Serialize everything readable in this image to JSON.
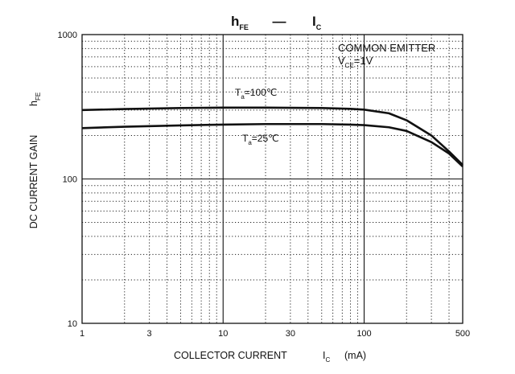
{
  "chart_data": {
    "type": "line",
    "title": {
      "main": "h",
      "main_sub": "FE",
      "dash": "—",
      "vs": "I",
      "vs_sub": "C"
    },
    "xlabel": {
      "text": "COLLECTOR CURRENT",
      "symbol": "I",
      "symbol_sub": "C",
      "unit": "(mA)"
    },
    "ylabel": {
      "text": "DC CURRENT GAIN",
      "symbol": "h",
      "symbol_sub": "FE"
    },
    "x_scale": "log",
    "y_scale": "log",
    "xlim": [
      1,
      500
    ],
    "ylim": [
      10,
      1000
    ],
    "x_ticks": [
      {
        "value": 1,
        "label": "1"
      },
      {
        "value": 3,
        "label": "3"
      },
      {
        "value": 10,
        "label": "10"
      },
      {
        "value": 30,
        "label": "30"
      },
      {
        "value": 100,
        "label": "100"
      },
      {
        "value": 500,
        "label": "500"
      }
    ],
    "y_ticks": [
      {
        "value": 10,
        "label": "10"
      },
      {
        "value": 100,
        "label": "100"
      },
      {
        "value": 1000,
        "label": "1000"
      }
    ],
    "grid": true,
    "annotation": {
      "line1": "COMMON EMITTER",
      "line2_sym": "V",
      "line2_sub": "CE",
      "line2_rest": "=1V"
    },
    "series": [
      {
        "name": "Ta=100℃",
        "label_sym": "T",
        "label_sub": "a",
        "label_rest": "=100℃",
        "x": [
          1,
          2,
          5,
          10,
          20,
          50,
          80,
          100,
          150,
          200,
          300,
          400,
          500
        ],
        "y": [
          300,
          305,
          310,
          312,
          312,
          310,
          306,
          302,
          285,
          255,
          200,
          155,
          125
        ]
      },
      {
        "name": "Ta=25℃",
        "label_sym": "T",
        "label_sub": "a",
        "label_rest": "=25℃",
        "x": [
          1,
          2,
          5,
          10,
          20,
          50,
          80,
          100,
          150,
          200,
          300,
          400,
          500
        ],
        "y": [
          225,
          230,
          235,
          238,
          240,
          240,
          238,
          236,
          228,
          215,
          180,
          150,
          122
        ]
      }
    ]
  }
}
